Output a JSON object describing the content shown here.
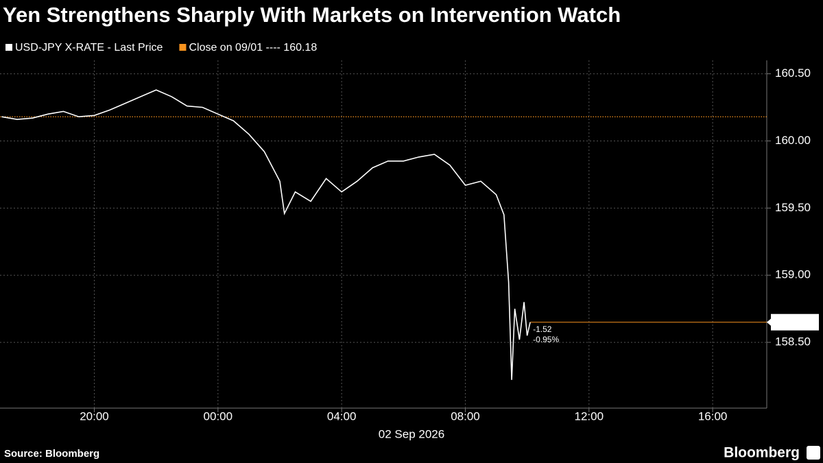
{
  "chart_data": {
    "type": "line",
    "title": "Yen Strengthens Sharply With Markets on Intervention Watch",
    "date_label": "02 Sep 2026",
    "source": "Source: Bloomberg",
    "brand": "Bloomberg",
    "grid": true,
    "series": [
      {
        "name": "USD-JPY X-RATE - Last Price",
        "color": "#ffffff",
        "x": [
          17.0,
          17.5,
          18.0,
          18.5,
          19.0,
          19.5,
          20.0,
          20.5,
          21.0,
          21.5,
          22.0,
          22.5,
          23.0,
          23.5,
          24.0,
          24.5,
          25.0,
          25.5,
          26.0,
          26.15,
          26.5,
          27.0,
          27.5,
          28.0,
          28.5,
          29.0,
          29.5,
          30.0,
          30.5,
          31.0,
          31.5,
          32.0,
          32.5,
          33.0,
          33.25,
          33.4,
          33.5,
          33.6,
          33.75,
          33.9,
          34.0,
          34.1
        ],
        "values": [
          160.18,
          160.16,
          160.17,
          160.2,
          160.22,
          160.18,
          160.19,
          160.23,
          160.28,
          160.33,
          160.38,
          160.33,
          160.26,
          160.25,
          160.2,
          160.15,
          160.05,
          159.92,
          159.7,
          159.46,
          159.62,
          159.55,
          159.72,
          159.62,
          159.7,
          159.8,
          159.85,
          159.85,
          159.88,
          159.9,
          159.82,
          159.67,
          159.7,
          159.6,
          159.45,
          158.95,
          158.22,
          158.75,
          158.52,
          158.8,
          158.55,
          158.65
        ]
      }
    ],
    "reference": {
      "name": "Close on 09/01 ---- 160.18",
      "value": 160.18,
      "color": "#f7931e"
    },
    "last_price": 158.65,
    "annotations": [
      "-1.52",
      "-0.95%"
    ],
    "xlim": [
      16.95,
      41.75
    ],
    "xticks": [
      {
        "value": 20,
        "label": "20:00"
      },
      {
        "value": 24,
        "label": "00:00"
      },
      {
        "value": 28,
        "label": "04:00"
      },
      {
        "value": 32,
        "label": "08:00"
      },
      {
        "value": 36,
        "label": "12:00"
      },
      {
        "value": 40,
        "label": "16:00"
      }
    ],
    "ylim": [
      158.01,
      160.6
    ],
    "yticks": [
      {
        "value": 158.5,
        "label": "158.50"
      },
      {
        "value": 159.0,
        "label": "159.00"
      },
      {
        "value": 159.5,
        "label": "159.50"
      },
      {
        "value": 160.0,
        "label": "160.00"
      },
      {
        "value": 160.5,
        "label": "160.50"
      }
    ]
  }
}
